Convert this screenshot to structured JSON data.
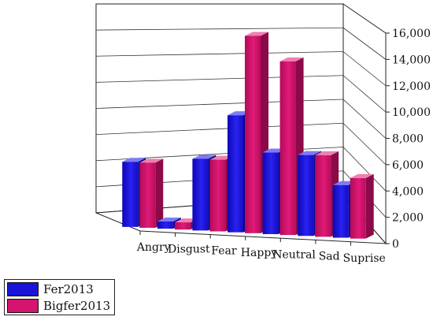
{
  "chart_data": {
    "type": "bar",
    "subtype": "3d-clustered-bar",
    "categories": [
      "Angry",
      "Disgust",
      "Fear",
      "Happy",
      "Neutral",
      "Sad",
      "Suprise"
    ],
    "series": [
      {
        "name": "Fer2013",
        "values": [
          4950,
          550,
          5450,
          8900,
          6200,
          6150,
          4000
        ],
        "color": "#1a14d8"
      },
      {
        "name": "Bigfer2013",
        "values": [
          4950,
          550,
          5450,
          15000,
          13200,
          6200,
          4600
        ],
        "color": "#d4146e"
      }
    ],
    "y_ticks": [
      "0",
      "2,000",
      "4,000",
      "6,000",
      "8,000",
      "10,000",
      "12,000",
      "14,000",
      "16,000"
    ],
    "ylim": [
      0,
      16000
    ],
    "grid": true,
    "legend_position": "bottom-left",
    "title": "",
    "xlabel": "",
    "ylabel": ""
  }
}
